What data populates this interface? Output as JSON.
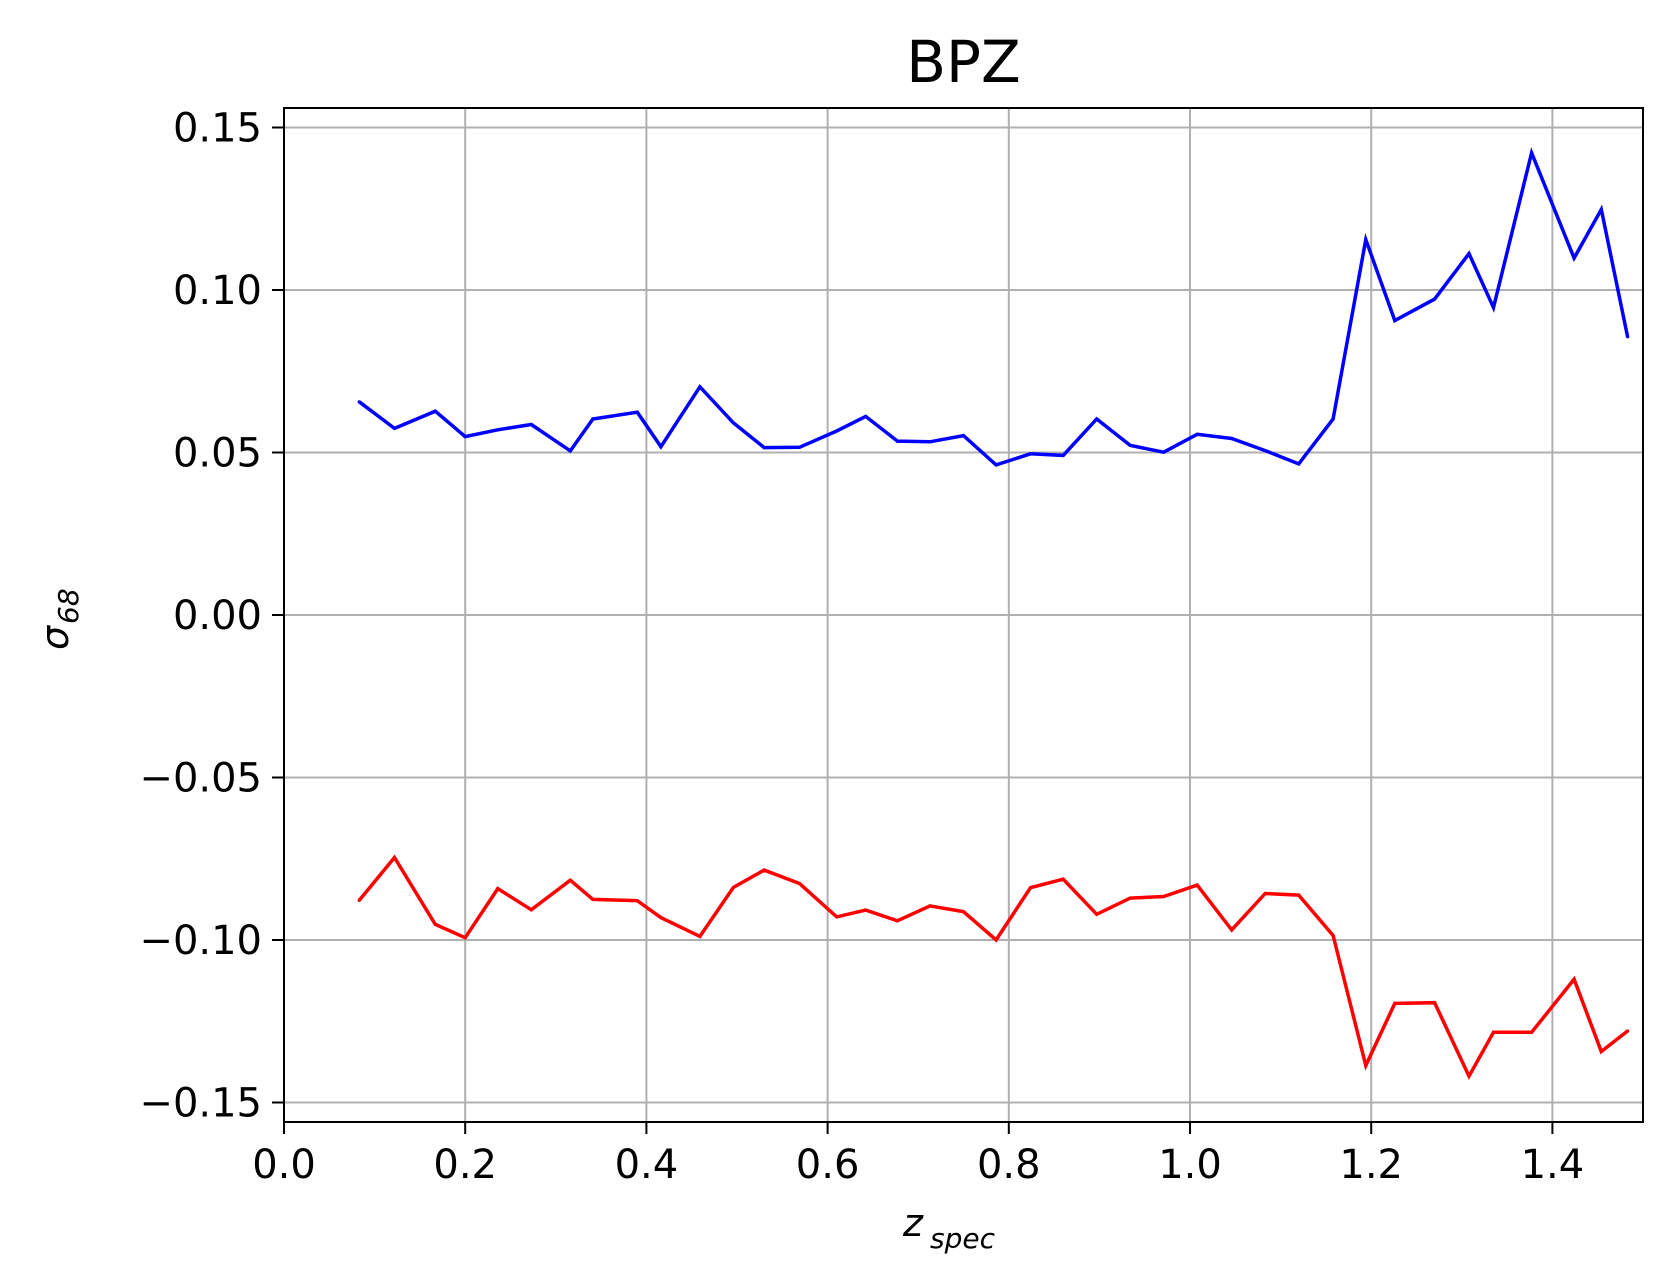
{
  "chart_data": {
    "type": "line",
    "title": "BPZ",
    "xlabel": "z",
    "xlabel_subscript": "spec",
    "ylabel": "σ",
    "ylabel_subscript": "68",
    "xlim": [
      0.0,
      1.5
    ],
    "ylim": [
      -0.156,
      0.156
    ],
    "x_ticks": [
      "0.0",
      "0.2",
      "0.4",
      "0.6",
      "0.8",
      "1.0",
      "1.2",
      "1.4"
    ],
    "y_ticks": [
      "0.15",
      "0.10",
      "0.05",
      "0.00",
      "−0.05",
      "−0.10",
      "−0.15"
    ],
    "grid": true,
    "x": [
      0.083,
      0.122,
      0.167,
      0.2,
      0.236,
      0.273,
      0.316,
      0.341,
      0.39,
      0.416,
      0.459,
      0.496,
      0.53,
      0.569,
      0.61,
      0.642,
      0.677,
      0.713,
      0.75,
      0.786,
      0.824,
      0.86,
      0.897,
      0.934,
      0.971,
      1.008,
      1.046,
      1.083,
      1.12,
      1.158,
      1.194,
      1.226,
      1.27,
      1.308,
      1.335,
      1.377,
      1.424,
      1.454,
      1.483
    ],
    "series": [
      {
        "color": "#0000ff",
        "values": [
          0.0656,
          0.0574,
          0.0627,
          0.0549,
          0.057,
          0.0586,
          0.0505,
          0.0603,
          0.0624,
          0.0518,
          0.0702,
          0.0591,
          0.0515,
          0.0516,
          0.0566,
          0.0611,
          0.0535,
          0.0533,
          0.0552,
          0.0462,
          0.0496,
          0.0491,
          0.0603,
          0.0522,
          0.0501,
          0.0556,
          0.0543,
          0.0506,
          0.0465,
          0.0603,
          0.1155,
          0.0906,
          0.0972,
          0.1112,
          0.0946,
          0.1422,
          0.1098,
          0.1248,
          0.0856
        ]
      },
      {
        "color": "#ff0000",
        "values": [
          -0.0878,
          -0.0746,
          -0.0952,
          -0.0993,
          -0.0842,
          -0.0907,
          -0.0816,
          -0.0875,
          -0.0879,
          -0.0931,
          -0.0989,
          -0.0838,
          -0.0785,
          -0.0826,
          -0.0929,
          -0.0908,
          -0.0941,
          -0.0895,
          -0.0913,
          -0.1,
          -0.0839,
          -0.0813,
          -0.0921,
          -0.0871,
          -0.0866,
          -0.0831,
          -0.0969,
          -0.0857,
          -0.0862,
          -0.0986,
          -0.1386,
          -0.1195,
          -0.1193,
          -0.1419,
          -0.1284,
          -0.1284,
          -0.1121,
          -0.1343,
          -0.128
        ]
      }
    ]
  }
}
